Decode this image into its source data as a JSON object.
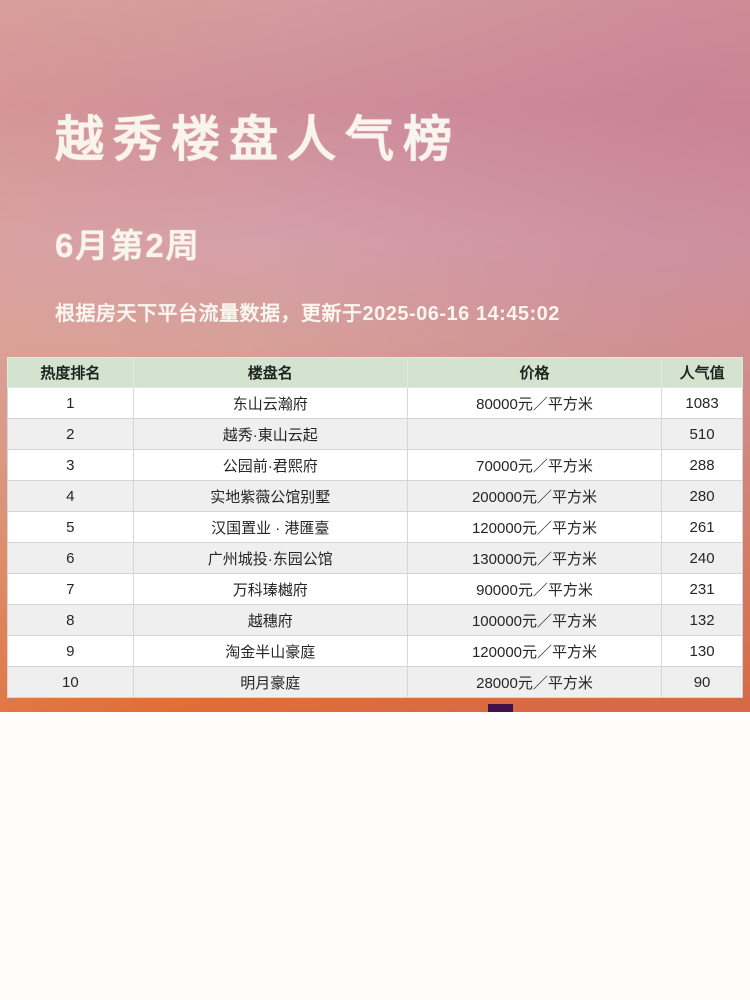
{
  "poster": {
    "title": "越秀楼盘人气榜",
    "subtitle": "6月第2周",
    "note": "根据房天下平台流量数据，更新于2025-06-16 14:45:02"
  },
  "chart_data": {
    "type": "table",
    "title": "越秀楼盘人气榜",
    "subtitle": "6月第2周",
    "source_note": "根据房天下平台流量数据，更新于2025-06-16 14:45:02",
    "columns": [
      "热度排名",
      "楼盘名",
      "价格",
      "人气值"
    ],
    "rows": [
      [
        "1",
        "东山云瀚府",
        "80000元／平方米",
        "1083"
      ],
      [
        "2",
        "越秀·東山云起",
        "",
        "510"
      ],
      [
        "3",
        "公园前·君熙府",
        "70000元／平方米",
        "288"
      ],
      [
        "4",
        "实地紫薇公馆别墅",
        "200000元／平方米",
        "280"
      ],
      [
        "5",
        "汉国置业 · 港匯臺",
        "120000元／平方米",
        "261"
      ],
      [
        "6",
        "广州城投·东园公馆",
        "130000元／平方米",
        "240"
      ],
      [
        "7",
        "万科瑧樾府",
        "90000元／平方米",
        "231"
      ],
      [
        "8",
        "越穗府",
        "100000元／平方米",
        "132"
      ],
      [
        "9",
        "淘金半山豪庭",
        "120000元／平方米",
        "130"
      ],
      [
        "10",
        "明月豪庭",
        "28000元／平方米",
        "90"
      ]
    ]
  },
  "colors": {
    "header_green": "#d3e3cf",
    "gradient_top_pink": "#d49a9e",
    "gradient_bottom_orange": "#e06d35",
    "row_alt_gray": "#efefef",
    "notch_purple": "#41114a"
  }
}
